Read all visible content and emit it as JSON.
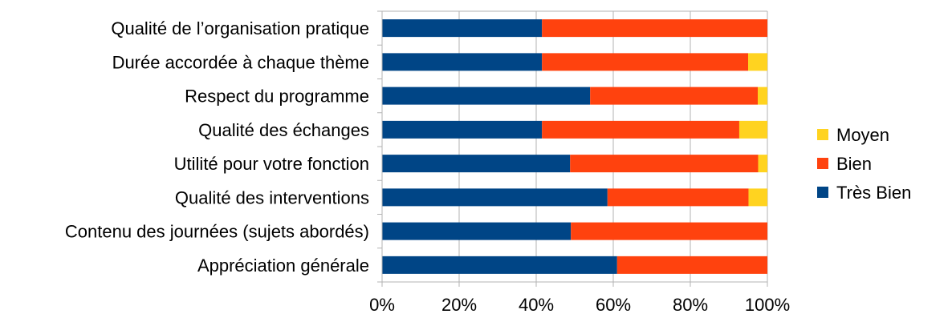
{
  "chart_data": {
    "type": "bar",
    "orientation": "horizontal",
    "stacked": "percent",
    "categories": [
      "Qualité de l’organisation pratique",
      "Durée accordée à chaque thème",
      "Respect du programme",
      "Qualité des échanges",
      "Utilité pour votre fonction",
      "Qualité des interventions",
      "Contenu des journées (sujets abordés)",
      "Appréciation générale"
    ],
    "series": [
      {
        "name": "Très Bien",
        "color": "#004586",
        "values": [
          41.5,
          41.5,
          54,
          41.5,
          48.8,
          58.5,
          49,
          61
        ]
      },
      {
        "name": "Bien",
        "color": "#ff420e",
        "values": [
          58.5,
          53.5,
          43.5,
          51.2,
          48.8,
          36.6,
          51,
          39
        ]
      },
      {
        "name": "Moyen",
        "color": "#ffd320",
        "values": [
          0,
          5,
          2.5,
          7.3,
          2.4,
          4.9,
          0,
          0
        ]
      }
    ],
    "x_ticks": [
      "0%",
      "20%",
      "40%",
      "60%",
      "80%",
      "100%"
    ],
    "xlim": [
      0,
      100
    ],
    "grid": true,
    "legend": {
      "placement": "right",
      "entries": [
        "Moyen",
        "Bien",
        "Très Bien"
      ]
    }
  }
}
